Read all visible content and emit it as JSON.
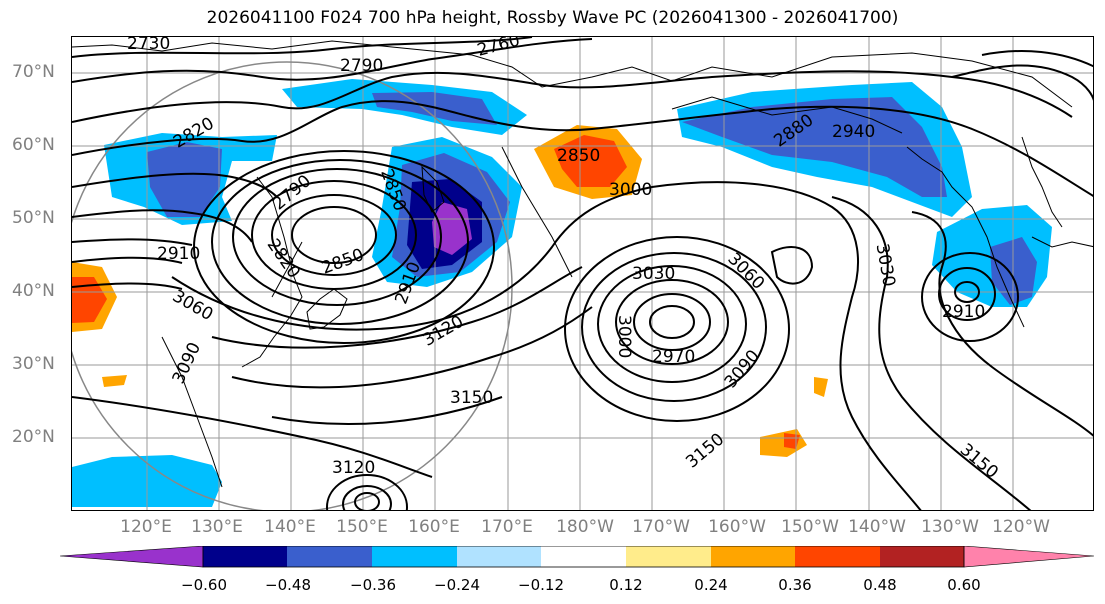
{
  "title": "2026041100 F024 700 hPa height, Rossby Wave PC (2026041300 - 2026041700)",
  "latitude_labels": [
    "70°N",
    "60°N",
    "50°N",
    "40°N",
    "30°N",
    "20°N"
  ],
  "longitude_labels": [
    "120°E",
    "130°E",
    "140°E",
    "150°E",
    "160°E",
    "170°E",
    "180°W",
    "170°W",
    "160°W",
    "150°W",
    "140°W",
    "130°W",
    "120°W"
  ],
  "contour_labels": [
    "2730",
    "2760",
    "2790",
    "2820",
    "2850",
    "2880",
    "2940",
    "2850",
    "3000",
    "2790",
    "2910",
    "2820",
    "2850",
    "2910",
    "3060",
    "3090",
    "3120",
    "3150",
    "3120",
    "3030",
    "3060",
    "3000",
    "2970",
    "3090",
    "3150",
    "3030",
    "2910",
    "3150"
  ],
  "colorbar": {
    "ticks": [
      "−0.60",
      "−0.48",
      "−0.36",
      "−0.24",
      "−0.12",
      "0.12",
      "0.24",
      "0.36",
      "0.48",
      "0.60"
    ],
    "colors": [
      "#9932cc",
      "#00008b",
      "#3a5fcd",
      "#00bfff",
      "#b0e2ff",
      "#ffffff",
      "#ffec8b",
      "#ffa500",
      "#ff4500",
      "#b22222",
      "#ff82ab"
    ]
  }
}
